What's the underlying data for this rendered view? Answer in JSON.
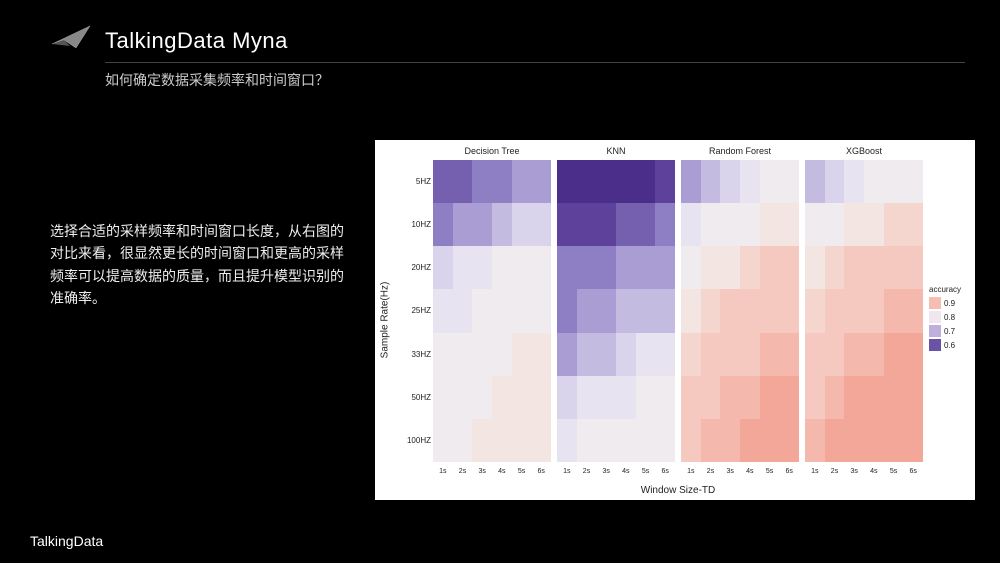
{
  "page_title": "TalkingData Myna",
  "subtitle": "如何确定数据采集频率和时间窗口？",
  "body_text": "选择合适的采样频率和时间窗口长度，从右图的对比来看，很显然更长的时间窗口和更高的采样频率可以提高数据的质量，而且提升模型识别的准确率。",
  "footer_brand": "TalkingData",
  "chart": {
    "type": "faceted-heatmap",
    "background": "#ffffff",
    "ylabel": "Sample Rate(Hz)",
    "xlabel": "Window Size-TD",
    "yticks": [
      "5HZ",
      "10HZ",
      "20HZ",
      "25HZ",
      "33HZ",
      "50HZ",
      "100HZ"
    ],
    "xticks": [
      "1s",
      "2s",
      "3s",
      "4s",
      "5s",
      "6s"
    ],
    "facets": [
      "Decision Tree",
      "KNN",
      "Random Forest",
      "XGBoost"
    ],
    "legend_title": "accuracy",
    "legend_items": [
      {
        "label": "0.9",
        "color": "#f6bdb3"
      },
      {
        "label": "0.8",
        "color": "#efe6ef"
      },
      {
        "label": "0.7",
        "color": "#beb0db"
      },
      {
        "label": "0.6",
        "color": "#6a53a4"
      }
    ],
    "color_scale": {
      "0.55": "#4a2e8a",
      "0.60": "#5d419a",
      "0.65": "#7560b0",
      "0.70": "#8e7fc4",
      "0.75": "#a99dd3",
      "0.78": "#c4bce0",
      "0.80": "#d9d3eb",
      "0.82": "#e8e3f1",
      "0.85": "#f0ebee",
      "0.87": "#f3e6e2",
      "0.89": "#f5d6cf",
      "0.90": "#f6c9c0",
      "0.92": "#f5b8ac",
      "0.94": "#f3a798",
      "0.96": "#f19584"
    },
    "data": {
      "Decision Tree": [
        [
          0.65,
          0.65,
          0.68,
          0.7,
          0.73,
          0.75
        ],
        [
          0.72,
          0.74,
          0.76,
          0.78,
          0.8,
          0.8
        ],
        [
          0.8,
          0.82,
          0.83,
          0.84,
          0.85,
          0.85
        ],
        [
          0.82,
          0.83,
          0.84,
          0.85,
          0.86,
          0.86
        ],
        [
          0.84,
          0.85,
          0.86,
          0.86,
          0.87,
          0.87
        ],
        [
          0.85,
          0.86,
          0.86,
          0.87,
          0.87,
          0.88
        ],
        [
          0.86,
          0.86,
          0.87,
          0.87,
          0.88,
          0.88
        ]
      ],
      "KNN": [
        [
          0.55,
          0.55,
          0.55,
          0.56,
          0.57,
          0.58
        ],
        [
          0.58,
          0.6,
          0.62,
          0.64,
          0.66,
          0.68
        ],
        [
          0.68,
          0.7,
          0.72,
          0.74,
          0.75,
          0.76
        ],
        [
          0.72,
          0.74,
          0.76,
          0.77,
          0.78,
          0.79
        ],
        [
          0.76,
          0.78,
          0.79,
          0.8,
          0.81,
          0.82
        ],
        [
          0.8,
          0.81,
          0.82,
          0.83,
          0.84,
          0.85
        ],
        [
          0.83,
          0.84,
          0.85,
          0.85,
          0.86,
          0.86
        ]
      ],
      "Random Forest": [
        [
          0.75,
          0.78,
          0.8,
          0.82,
          0.84,
          0.85
        ],
        [
          0.82,
          0.84,
          0.85,
          0.86,
          0.87,
          0.88
        ],
        [
          0.86,
          0.87,
          0.88,
          0.89,
          0.9,
          0.9
        ],
        [
          0.88,
          0.89,
          0.9,
          0.9,
          0.91,
          0.91
        ],
        [
          0.89,
          0.9,
          0.91,
          0.91,
          0.92,
          0.92
        ],
        [
          0.9,
          0.91,
          0.92,
          0.92,
          0.93,
          0.93
        ],
        [
          0.91,
          0.92,
          0.92,
          0.93,
          0.93,
          0.94
        ]
      ],
      "XGBoost": [
        [
          0.78,
          0.8,
          0.82,
          0.84,
          0.85,
          0.86
        ],
        [
          0.84,
          0.86,
          0.87,
          0.88,
          0.89,
          0.89
        ],
        [
          0.88,
          0.89,
          0.9,
          0.9,
          0.91,
          0.91
        ],
        [
          0.89,
          0.9,
          0.91,
          0.91,
          0.92,
          0.92
        ],
        [
          0.9,
          0.91,
          0.92,
          0.92,
          0.93,
          0.93
        ],
        [
          0.91,
          0.92,
          0.93,
          0.93,
          0.94,
          0.94
        ],
        [
          0.92,
          0.93,
          0.93,
          0.94,
          0.94,
          0.95
        ]
      ]
    }
  }
}
